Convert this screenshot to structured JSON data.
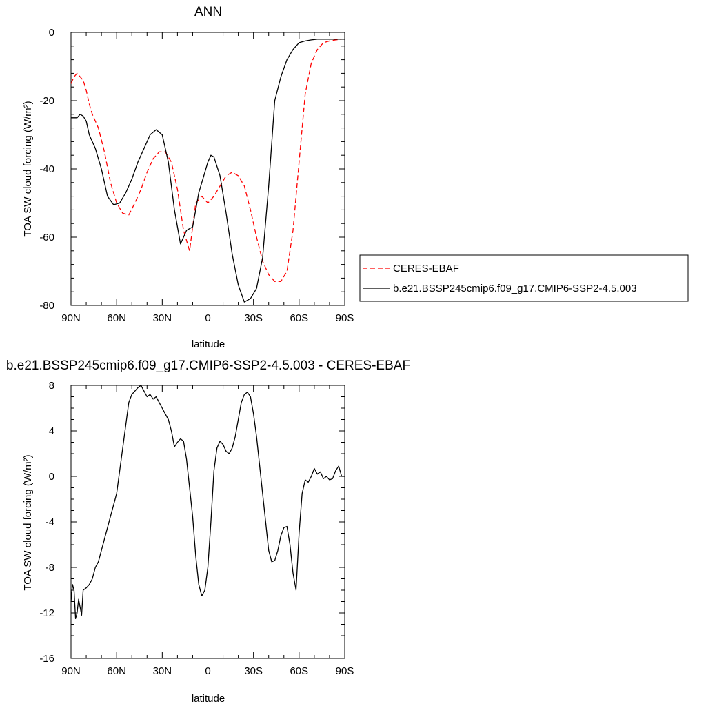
{
  "chart_data": [
    {
      "type": "line",
      "title": "ANN",
      "xlabel": "latitude",
      "ylabel": "TOA SW cloud forcing (W/m²)",
      "x_axis": "latitude, degrees (+ = N, - = S); plotted from 90N on the left to 90S on the right",
      "xlim": [
        90,
        -90
      ],
      "ylim": [
        -80,
        0
      ],
      "xticks": [
        {
          "value": 90,
          "label": "90N"
        },
        {
          "value": 60,
          "label": "60N"
        },
        {
          "value": 30,
          "label": "30N"
        },
        {
          "value": 0,
          "label": "0"
        },
        {
          "value": -30,
          "label": "30S"
        },
        {
          "value": -60,
          "label": "60S"
        },
        {
          "value": -90,
          "label": "90S"
        }
      ],
      "yticks": [
        0,
        -20,
        -40,
        -60,
        -80
      ],
      "legend": "outside right",
      "grid": false,
      "series": [
        {
          "name": "CERES-EBAF",
          "color": "#ff0000",
          "dash": "dashed",
          "x": [
            90,
            88,
            86,
            84,
            82,
            80,
            78,
            76,
            72,
            68,
            64,
            60,
            56,
            52,
            48,
            44,
            40,
            36,
            32,
            28,
            24,
            20,
            16,
            12,
            8,
            4,
            2,
            0,
            -4,
            -8,
            -12,
            -16,
            -20,
            -24,
            -28,
            -32,
            -36,
            -40,
            -44,
            -48,
            -52,
            -56,
            -60,
            -64,
            -68,
            -72,
            -76,
            -80,
            -84,
            -88,
            -90
          ],
          "y": [
            -15,
            -13,
            -12,
            -13,
            -14,
            -17,
            -21,
            -24,
            -28,
            -35,
            -44,
            -50,
            -53,
            -53.5,
            -50,
            -46,
            -41,
            -37,
            -35,
            -35,
            -38,
            -46,
            -58,
            -64,
            -50,
            -48,
            -49,
            -50,
            -48,
            -45,
            -42,
            -41,
            -42,
            -45,
            -52,
            -60,
            -67,
            -71,
            -73,
            -73,
            -70,
            -58,
            -38,
            -18,
            -9,
            -5,
            -3,
            -2.5,
            -2.2,
            -2,
            -2
          ]
        },
        {
          "name": "b.e21.BSSP245cmip6.f09_g17.CMIP6-SSP2-4.5.003",
          "color": "#000000",
          "dash": "solid",
          "x": [
            90,
            86,
            84,
            82,
            80,
            78,
            74,
            70,
            66,
            62,
            58,
            54,
            50,
            46,
            42,
            38,
            34,
            30,
            26,
            22,
            18,
            14,
            10,
            8,
            6,
            4,
            0,
            -2,
            -4,
            -8,
            -12,
            -16,
            -20,
            -24,
            -28,
            -32,
            -36,
            -40,
            -44,
            -48,
            -52,
            -56,
            -60,
            -64,
            -68,
            -72,
            -76,
            -80,
            -84,
            -88,
            -90
          ],
          "y": [
            -25,
            -25,
            -24,
            -24.5,
            -26,
            -30,
            -34,
            -40,
            -48,
            -50.5,
            -50,
            -47,
            -43,
            -38,
            -34,
            -30,
            -28.5,
            -30,
            -38,
            -52,
            -62,
            -58,
            -57,
            -52,
            -47,
            -44,
            -38,
            -36,
            -36.5,
            -42,
            -53,
            -65,
            -74,
            -79,
            -78,
            -75,
            -66,
            -45,
            -20,
            -13,
            -8,
            -5,
            -3,
            -2.5,
            -2.2,
            -2,
            -2,
            -2,
            -2,
            -2,
            -2
          ]
        }
      ]
    },
    {
      "type": "line",
      "title": "b.e21.BSSP245cmip6.f09_g17.CMIP6-SSP2-4.5.003 - CERES-EBAF",
      "xlabel": "latitude",
      "ylabel": "TOA SW cloud forcing (W/m²)",
      "x_axis": "latitude, degrees (+ = N, - = S); plotted from 90N on the left to 90S on the right",
      "xlim": [
        90,
        -90
      ],
      "ylim": [
        -16,
        8
      ],
      "xticks": [
        {
          "value": 90,
          "label": "90N"
        },
        {
          "value": 60,
          "label": "60N"
        },
        {
          "value": 30,
          "label": "30N"
        },
        {
          "value": 0,
          "label": "0"
        },
        {
          "value": -30,
          "label": "30S"
        },
        {
          "value": -60,
          "label": "60S"
        },
        {
          "value": -90,
          "label": "90S"
        }
      ],
      "yticks": [
        8,
        4,
        0,
        -4,
        -8,
        -12,
        -16
      ],
      "grid": false,
      "series": [
        {
          "color": "#000000",
          "x": [
            90,
            89,
            88,
            87,
            86,
            85,
            84,
            83,
            82,
            80,
            78,
            76,
            74,
            72,
            70,
            68,
            66,
            64,
            62,
            60,
            58,
            56,
            54,
            52,
            50,
            48,
            46,
            44,
            42,
            40,
            38,
            36,
            34,
            32,
            30,
            28,
            26,
            24,
            22,
            20,
            18,
            16,
            14,
            12,
            10,
            8,
            6,
            4,
            2,
            0,
            -2,
            -4,
            -6,
            -8,
            -10,
            -12,
            -14,
            -16,
            -18,
            -20,
            -22,
            -24,
            -26,
            -28,
            -30,
            -32,
            -34,
            -36,
            -38,
            -40,
            -42,
            -44,
            -46,
            -48,
            -50,
            -52,
            -54,
            -56,
            -58,
            -60,
            -62,
            -64,
            -66,
            -68,
            -70,
            -72,
            -74,
            -76,
            -78,
            -80,
            -82,
            -84,
            -86,
            -88,
            -90
          ],
          "y": [
            -11,
            -9.5,
            -10,
            -12.5,
            -12,
            -10.8,
            -11.5,
            -12.2,
            -10,
            -9.8,
            -9.5,
            -9,
            -8,
            -7.5,
            -6.5,
            -5.5,
            -4.5,
            -3.5,
            -2.5,
            -1.5,
            0.5,
            2.5,
            4.5,
            6.5,
            7.2,
            7.5,
            7.8,
            8.0,
            7.5,
            7.0,
            7.2,
            6.8,
            7.0,
            6.5,
            6.0,
            5.5,
            5.0,
            4.0,
            2.6,
            3.0,
            3.3,
            3.1,
            1.5,
            -1,
            -3.5,
            -7,
            -9.5,
            -10.5,
            -10,
            -8,
            -4,
            0.5,
            2.5,
            3.1,
            2.8,
            2.2,
            2.0,
            2.5,
            3.5,
            5.0,
            6.5,
            7.2,
            7.4,
            7.0,
            5.5,
            3.5,
            1.0,
            -1.5,
            -4,
            -6.5,
            -7.5,
            -7.4,
            -6.5,
            -5.2,
            -4.5,
            -4.4,
            -6,
            -8.5,
            -10,
            -5,
            -1.5,
            -0.3,
            -0.5,
            0,
            0.7,
            0.2,
            0.4,
            -0.2,
            0,
            -0.3,
            -0.2,
            0.5,
            0.9,
            0,
            0
          ]
        }
      ]
    }
  ],
  "figure": {
    "legend_series_1": "CERES-EBAF",
    "legend_series_2": "b.e21.BSSP245cmip6.f09_g17.CMIP6-SSP2-4.5.003"
  }
}
